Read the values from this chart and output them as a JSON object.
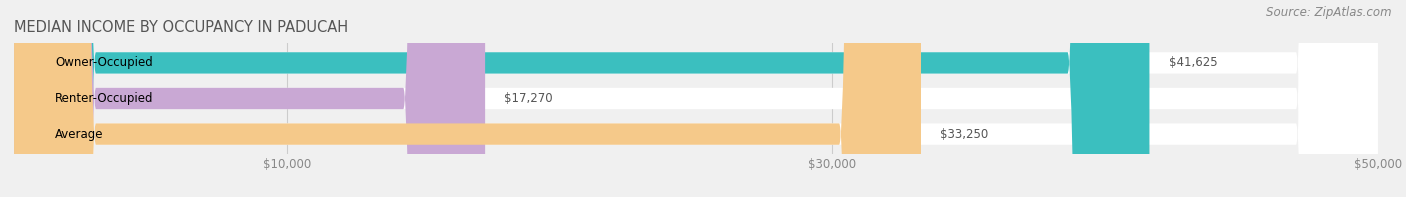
{
  "title": "MEDIAN INCOME BY OCCUPANCY IN PADUCAH",
  "source": "Source: ZipAtlas.com",
  "categories": [
    "Owner-Occupied",
    "Renter-Occupied",
    "Average"
  ],
  "values": [
    41625,
    17270,
    33250
  ],
  "labels": [
    "$41,625",
    "$17,270",
    "$33,250"
  ],
  "bar_colors": [
    "#3bbfbf",
    "#c9a8d4",
    "#f5c98a"
  ],
  "background_color": "#f0f0f0",
  "xlim": [
    0,
    50000
  ],
  "xticks": [
    10000,
    30000,
    50000
  ],
  "xtick_labels": [
    "$10,000",
    "$30,000",
    "$50,000"
  ],
  "bar_height": 0.6,
  "title_fontsize": 10.5,
  "label_fontsize": 8.5,
  "tick_fontsize": 8.5,
  "source_fontsize": 8.5
}
